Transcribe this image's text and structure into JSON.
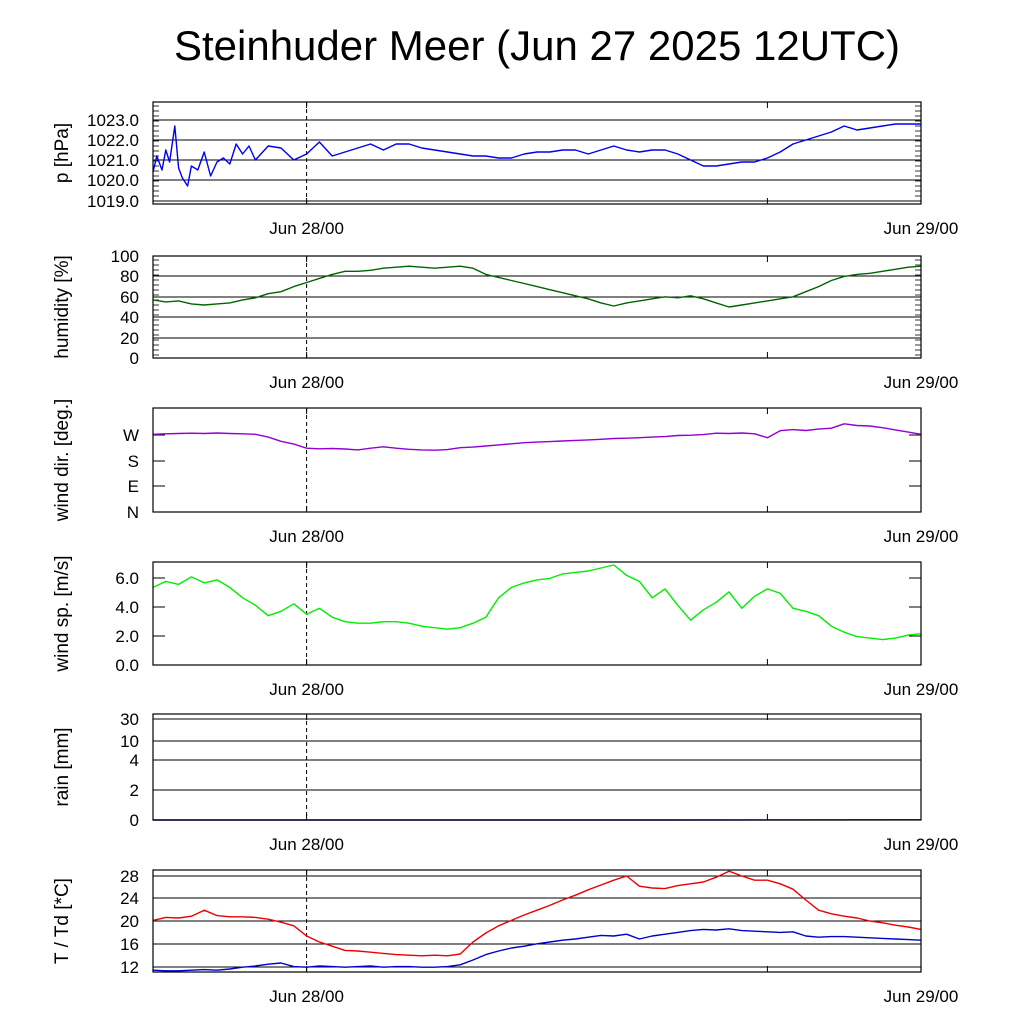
{
  "title": "Steinhuder Meer (Jun 27 2025 12UTC)",
  "x_tick_labels": [
    "Jun 28/00",
    "Jun 29/00"
  ],
  "chart_data": [
    {
      "type": "line",
      "ylabel": "p [hPa]",
      "y_ticks": [
        "1019.0",
        "1020.0",
        "1021.0",
        "1022.0",
        "1023.0"
      ],
      "ylim": [
        1018.9,
        1024.0
      ],
      "grid": true,
      "x_hours": [
        0,
        0.3,
        0.7,
        1,
        1.3,
        1.7,
        2,
        2.3,
        2.7,
        3,
        3.5,
        4,
        4.5,
        5,
        5.5,
        6,
        6.5,
        7,
        7.5,
        8,
        9,
        10,
        11,
        12,
        13,
        14,
        15,
        16,
        17,
        18,
        19,
        20,
        21,
        22,
        23,
        24,
        25,
        26,
        27,
        28,
        29,
        30,
        31,
        32,
        33,
        34,
        35,
        36,
        37,
        38,
        39,
        40,
        41,
        42,
        43,
        44,
        45,
        46,
        47,
        48,
        49,
        50,
        51,
        52,
        53,
        54,
        55,
        56,
        57,
        58,
        59,
        60
      ],
      "series": [
        {
          "color": "#0000ee",
          "values": [
            1020.5,
            1021.3,
            1020.6,
            1021.6,
            1021.0,
            1022.8,
            1020.7,
            1020.2,
            1019.8,
            1020.8,
            1020.6,
            1021.5,
            1020.3,
            1021.0,
            1021.2,
            1020.9,
            1021.9,
            1021.4,
            1021.8,
            1021.1,
            1021.8,
            1021.7,
            1021.1,
            1021.4,
            1022.0,
            1021.3,
            1021.5,
            1021.7,
            1021.9,
            1021.6,
            1021.9,
            1021.9,
            1021.7,
            1021.6,
            1021.5,
            1021.4,
            1021.3,
            1021.3,
            1021.2,
            1021.2,
            1021.4,
            1021.5,
            1021.5,
            1021.6,
            1021.6,
            1021.4,
            1021.6,
            1021.8,
            1021.6,
            1021.5,
            1021.6,
            1021.6,
            1021.4,
            1021.1,
            1020.8,
            1020.8,
            1020.9,
            1021.0,
            1021.0,
            1021.2,
            1021.5,
            1021.9,
            1022.1,
            1022.3,
            1022.5,
            1022.8,
            1022.6,
            1022.7,
            1022.8,
            1022.9,
            1022.9,
            1022.9
          ]
        }
      ]
    },
    {
      "type": "line",
      "ylabel": "humidity [%]",
      "y_ticks": [
        "0",
        "20",
        "40",
        "60",
        "80",
        "100"
      ],
      "ylim": [
        0,
        100
      ],
      "grid": true,
      "x_hours": [
        0,
        1,
        2,
        3,
        4,
        5,
        6,
        7,
        8,
        9,
        10,
        11,
        12,
        13,
        14,
        15,
        16,
        17,
        18,
        19,
        20,
        21,
        22,
        23,
        24,
        25,
        26,
        27,
        28,
        29,
        30,
        31,
        32,
        33,
        34,
        35,
        36,
        37,
        38,
        39,
        40,
        41,
        42,
        43,
        44,
        45,
        46,
        47,
        48,
        49,
        50,
        51,
        52,
        53,
        54,
        55,
        56,
        57,
        58,
        59,
        60
      ],
      "series": [
        {
          "color": "#006400",
          "values": [
            57,
            55,
            56,
            53,
            52,
            53,
            54,
            57,
            59,
            63,
            65,
            70,
            74,
            78,
            82,
            85,
            85,
            86,
            88,
            89,
            90,
            89,
            88,
            89,
            90,
            88,
            82,
            79,
            76,
            73,
            70,
            67,
            64,
            61,
            58,
            54,
            51,
            54,
            56,
            58,
            60,
            59,
            61,
            58,
            54,
            50,
            52,
            54,
            56,
            58,
            60,
            65,
            70,
            76,
            80,
            82,
            83,
            85,
            87,
            89,
            90
          ]
        }
      ]
    },
    {
      "type": "line",
      "ylabel": "wind dir. [deg.]",
      "y_ticks": [
        "N",
        "E",
        "S",
        "W"
      ],
      "ylim": [
        0,
        375
      ],
      "grid": false,
      "x_hours": [
        0,
        1,
        2,
        3,
        4,
        5,
        6,
        7,
        8,
        9,
        10,
        11,
        12,
        13,
        14,
        15,
        16,
        17,
        18,
        19,
        20,
        21,
        22,
        23,
        24,
        25,
        26,
        27,
        28,
        29,
        30,
        31,
        32,
        33,
        34,
        35,
        36,
        37,
        38,
        39,
        40,
        41,
        42,
        43,
        44,
        45,
        46,
        47,
        48,
        49,
        50,
        51,
        52,
        53,
        54,
        55,
        56,
        57,
        58,
        59,
        60
      ],
      "series": [
        {
          "color": "#9400d3",
          "values": [
            280,
            282,
            283,
            284,
            283,
            285,
            283,
            282,
            280,
            270,
            255,
            245,
            230,
            228,
            229,
            227,
            224,
            230,
            235,
            230,
            226,
            224,
            223,
            225,
            232,
            234,
            238,
            242,
            246,
            250,
            252,
            254,
            256,
            258,
            260,
            262,
            265,
            266,
            268,
            270,
            272,
            276,
            277,
            279,
            284,
            283,
            285,
            282,
            268,
            293,
            297,
            294,
            299,
            302,
            318,
            312,
            310,
            304,
            296,
            288,
            280
          ]
        }
      ]
    },
    {
      "type": "line",
      "ylabel": "wind sp. [m/s]",
      "y_ticks": [
        "0.0",
        "2.0",
        "4.0",
        "6.0"
      ],
      "ylim": [
        0,
        6.9
      ],
      "grid": false,
      "x_hours": [
        0,
        1,
        2,
        3,
        4,
        5,
        6,
        7,
        8,
        9,
        10,
        11,
        12,
        13,
        14,
        15,
        16,
        17,
        18,
        19,
        20,
        21,
        22,
        23,
        24,
        25,
        26,
        27,
        28,
        29,
        30,
        31,
        32,
        33,
        34,
        35,
        36,
        37,
        38,
        39,
        40,
        41,
        42,
        43,
        44,
        45,
        46,
        47,
        48,
        49,
        50,
        51,
        52,
        53,
        54,
        55,
        56,
        57,
        58,
        59,
        60
      ],
      "series": [
        {
          "color": "#00ee00",
          "values": [
            5.2,
            5.6,
            5.4,
            5.9,
            5.5,
            5.7,
            5.2,
            4.5,
            4.0,
            3.3,
            3.6,
            4.1,
            3.4,
            3.8,
            3.2,
            2.9,
            2.8,
            2.8,
            2.9,
            2.9,
            2.8,
            2.6,
            2.5,
            2.4,
            2.5,
            2.8,
            3.2,
            4.5,
            5.2,
            5.5,
            5.7,
            5.8,
            6.1,
            6.2,
            6.3,
            6.5,
            6.7,
            6.0,
            5.6,
            4.5,
            5.1,
            4.0,
            3.0,
            3.7,
            4.2,
            4.9,
            3.8,
            4.6,
            5.1,
            4.8,
            3.8,
            3.6,
            3.3,
            2.6,
            2.2,
            1.9,
            1.8,
            1.7,
            1.8,
            2.0,
            2.1
          ]
        }
      ]
    },
    {
      "type": "line",
      "ylabel": "rain [mm]",
      "y_ticks": [
        "0",
        "2",
        "4",
        "10",
        "30"
      ],
      "ylim": [
        0,
        31
      ],
      "grid": true,
      "x_hours": [
        0,
        40,
        60
      ],
      "series": [
        {
          "color": "#0000cc",
          "values": [
            0,
            0,
            0.05
          ]
        }
      ]
    },
    {
      "type": "line",
      "ylabel": "T / Td [*C]",
      "y_ticks": [
        "12",
        "16",
        "20",
        "24",
        "28"
      ],
      "ylim": [
        11.5,
        28.5
      ],
      "grid": true,
      "x_hours": [
        0,
        1,
        2,
        3,
        4,
        5,
        6,
        7,
        8,
        9,
        10,
        11,
        12,
        13,
        14,
        15,
        16,
        17,
        18,
        19,
        20,
        21,
        22,
        23,
        24,
        25,
        26,
        27,
        28,
        29,
        30,
        31,
        32,
        33,
        34,
        35,
        36,
        37,
        38,
        39,
        40,
        41,
        42,
        43,
        44,
        45,
        46,
        47,
        48,
        49,
        50,
        51,
        52,
        53,
        54,
        55,
        56,
        57,
        58,
        59,
        60
      ],
      "series": [
        {
          "color": "#ee0000",
          "values": [
            20.1,
            20.6,
            20.5,
            20.8,
            21.8,
            20.9,
            20.7,
            20.7,
            20.6,
            20.3,
            19.8,
            19.2,
            17.5,
            16.5,
            15.8,
            15.1,
            15.0,
            14.8,
            14.6,
            14.4,
            14.3,
            14.2,
            14.3,
            14.2,
            14.5,
            16.5,
            18.0,
            19.2,
            20.1,
            21.0,
            21.8,
            22.6,
            23.5,
            24.3,
            25.2,
            26.0,
            26.8,
            27.5,
            25.8,
            25.5,
            25.4,
            25.9,
            26.2,
            26.5,
            27.3,
            28.3,
            27.5,
            26.8,
            26.8,
            26.2,
            25.3,
            23.5,
            21.8,
            21.2,
            20.8,
            20.5,
            20.0,
            19.7,
            19.3,
            19.0,
            18.6
          ]
        },
        {
          "color": "#0000cc",
          "values": [
            11.8,
            11.7,
            11.7,
            11.8,
            11.9,
            11.8,
            12.0,
            12.3,
            12.5,
            12.8,
            13.0,
            12.4,
            12.3,
            12.5,
            12.4,
            12.3,
            12.4,
            12.5,
            12.3,
            12.4,
            12.4,
            12.3,
            12.3,
            12.4,
            12.7,
            13.5,
            14.4,
            15.0,
            15.5,
            15.8,
            16.2,
            16.5,
            16.8,
            17.0,
            17.3,
            17.6,
            17.5,
            17.8,
            17.0,
            17.5,
            17.8,
            18.1,
            18.4,
            18.6,
            18.5,
            18.7,
            18.4,
            18.3,
            18.2,
            18.1,
            18.2,
            17.5,
            17.3,
            17.4,
            17.4,
            17.3,
            17.2,
            17.1,
            17.0,
            16.9,
            16.8
          ]
        }
      ]
    }
  ]
}
